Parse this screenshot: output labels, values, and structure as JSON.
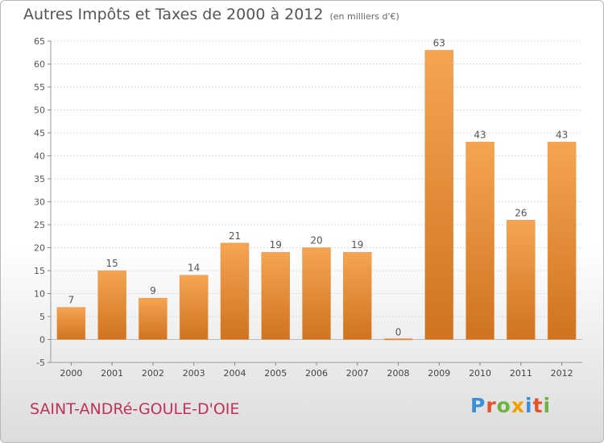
{
  "header": {
    "title": "Autres Impôts et Taxes de 2000 à 2012",
    "subtitle": "(en milliers d'€)"
  },
  "footer": {
    "location": "SAINT-ANDRé-GOULE-D'OIE",
    "brand": "Proxiti",
    "brand_colors": [
      "#3a8fd6",
      "#e4542b",
      "#6db33f",
      "#f0a000",
      "#3a8fd6",
      "#e4542b",
      "#6db33f"
    ]
  },
  "chart_data": {
    "type": "bar",
    "title": "Autres Impôts et Taxes de 2000 à 2012",
    "subtitle": "(en milliers d'€)",
    "categories": [
      "2000",
      "2001",
      "2002",
      "2003",
      "2004",
      "2005",
      "2006",
      "2007",
      "2008",
      "2009",
      "2010",
      "2011",
      "2012"
    ],
    "values": [
      7,
      15,
      9,
      14,
      21,
      19,
      20,
      19,
      0,
      63,
      43,
      26,
      43
    ],
    "ylim": [
      -5,
      65
    ],
    "yticks": [
      -5,
      0,
      5,
      10,
      15,
      20,
      25,
      30,
      35,
      40,
      45,
      50,
      55,
      60,
      65
    ],
    "grid": true,
    "bar_color": "#f0a050",
    "bar_color_dark": "#c86f1f"
  }
}
